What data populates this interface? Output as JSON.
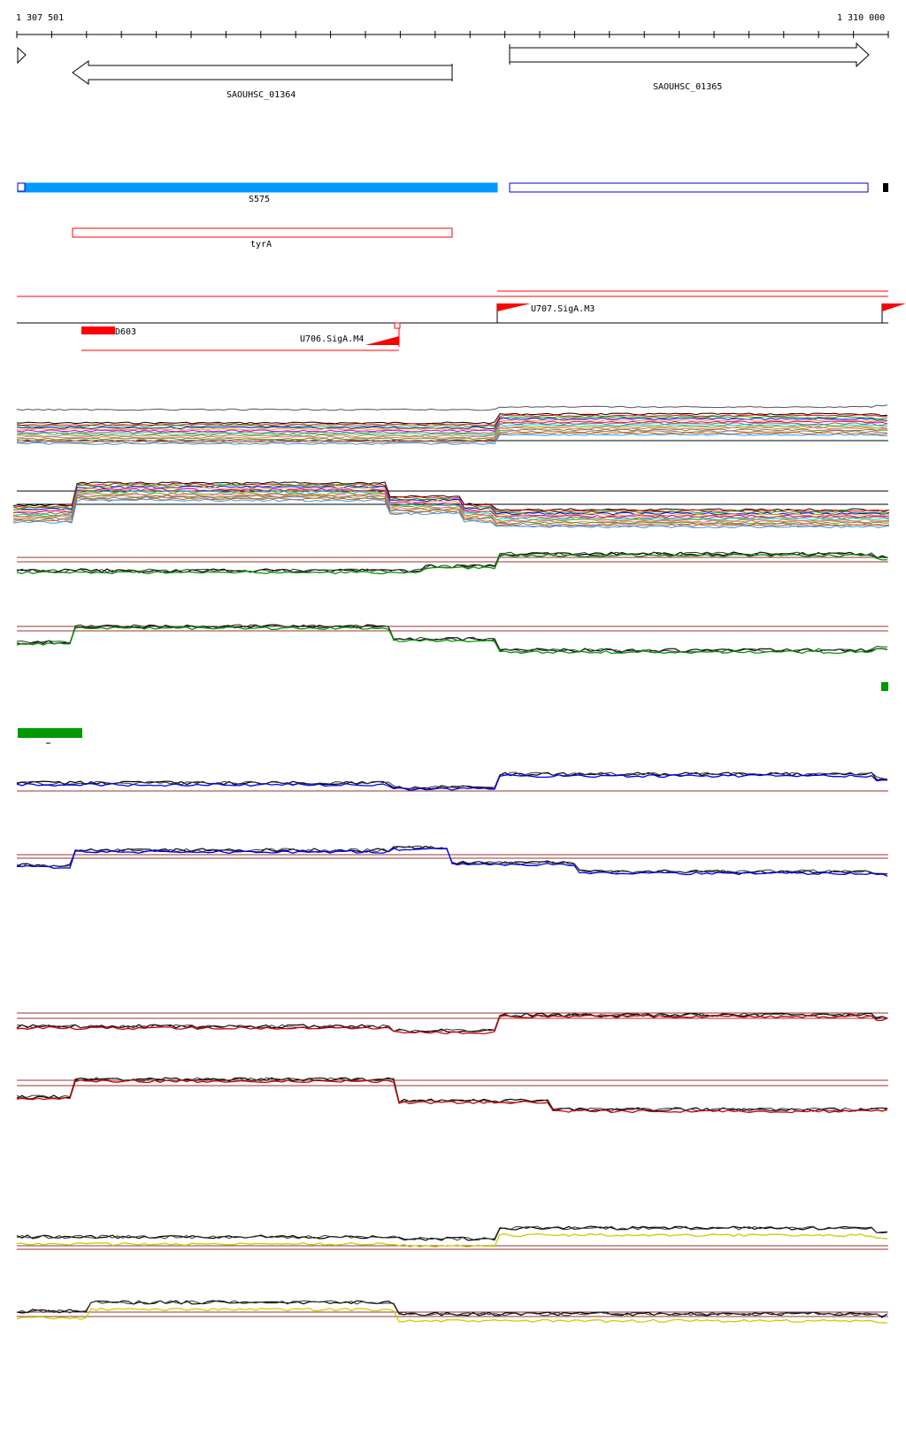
{
  "ruler": {
    "start_label": "1 307 501",
    "end_label": "1 310 000"
  },
  "genes": [
    {
      "label": "SAOUHSC_01364",
      "strand": "-"
    },
    {
      "label": "SAOUHSC_01365",
      "strand": "+"
    }
  ],
  "segments": {
    "s575_label": "S575",
    "tyra_label": "tyrA"
  },
  "transcripts": {
    "d603_label": "D603",
    "u706_label": "U706.SigA.M4",
    "u707_label": "U707.SigA.M3"
  },
  "colors": {
    "gene_outline": "#000000",
    "segment_fill": "#0099ff",
    "segment_outline": "#0000cc",
    "tyra_outline": "#ff0000",
    "transcript_red": "#ff0000",
    "expression_black": "#000000",
    "expression_green": "#009900",
    "expression_blue": "#0000ff",
    "expression_red": "#cc0000",
    "expression_yellow": "#cccc00",
    "threshold_brown": "#993333"
  }
}
